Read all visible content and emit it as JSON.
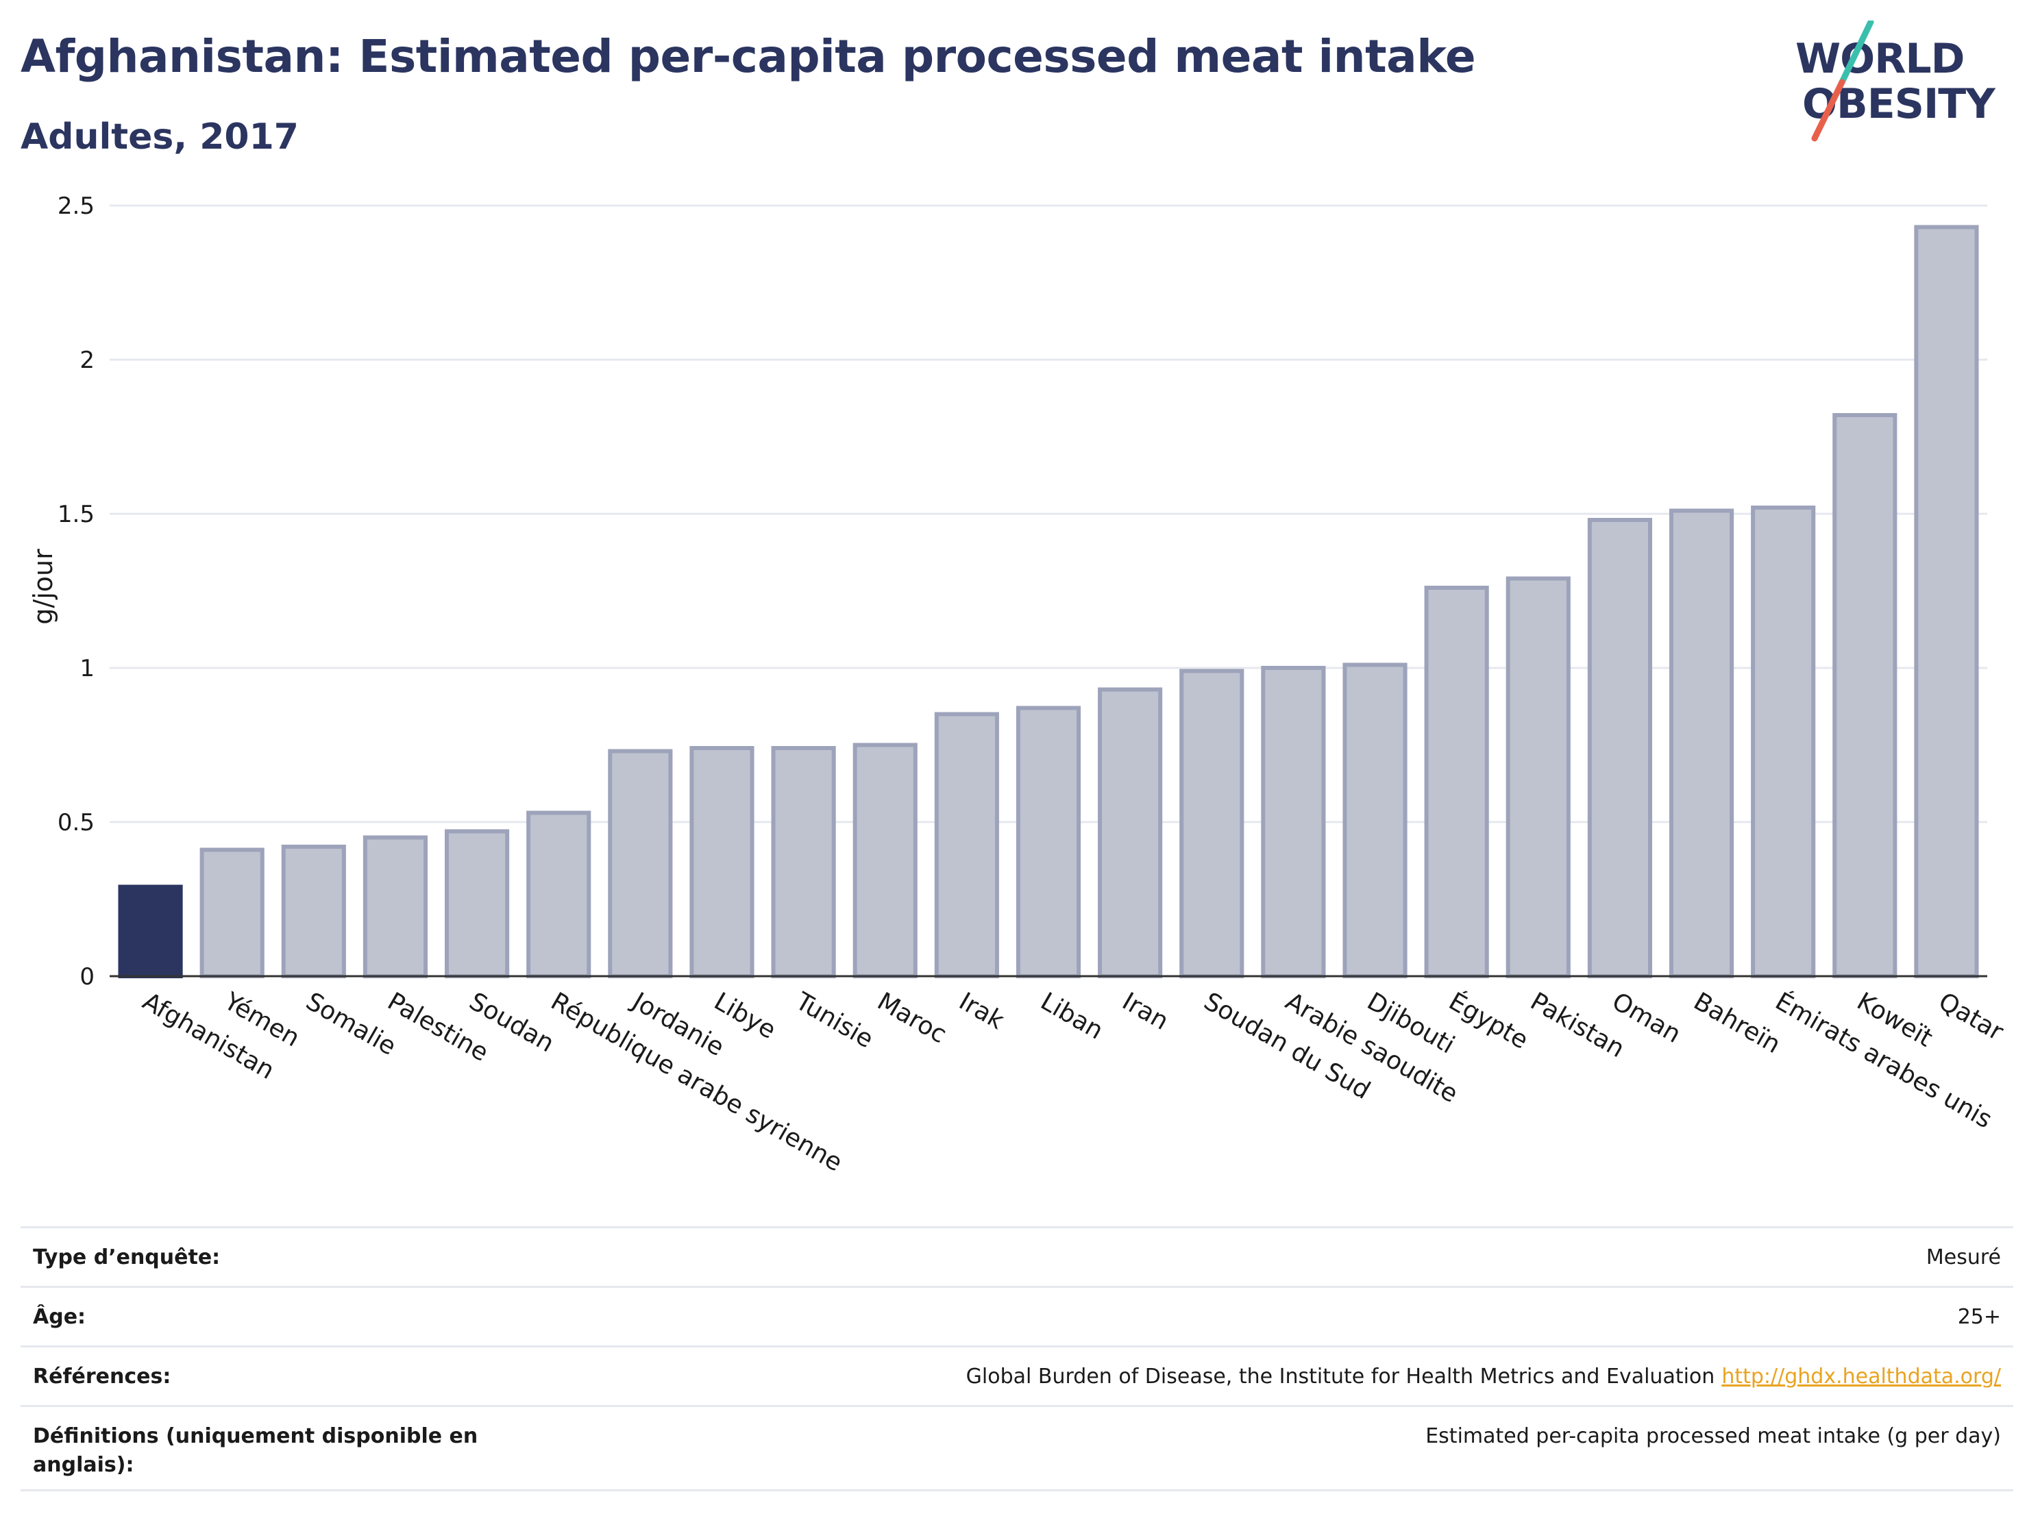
{
  "header": {
    "title": "Afghanistan: Estimated per-capita processed meat intake",
    "subtitle": "Adultes, 2017"
  },
  "logo": {
    "line1": "WORLD",
    "line2": "OBESITY",
    "colors": {
      "text": "#2b3560",
      "slash_top": "#3bbfad",
      "slash_bottom": "#e8604c"
    }
  },
  "chart_data": {
    "type": "bar",
    "ylabel": "g/jour",
    "xlabel": "",
    "ylim": [
      0,
      2.5
    ],
    "yticks": [
      0,
      0.5,
      1,
      1.5,
      2,
      2.5
    ],
    "ytick_labels": [
      "0",
      "0.5",
      "1",
      "1.5",
      "2",
      "2.5"
    ],
    "grid": true,
    "categories": [
      "Afghanistan",
      "Yémen",
      "Somalie",
      "Palestine",
      "Soudan",
      "République arabe syrienne",
      "Jordanie",
      "Libye",
      "Tunisie",
      "Maroc",
      "Irak",
      "Liban",
      "Iran",
      "Soudan du Sud",
      "Arabie saoudite",
      "Djibouti",
      "Égypte",
      "Pakistan",
      "Oman",
      "Bahreïn",
      "Émirats arabes unis",
      "Koweït",
      "Qatar"
    ],
    "values": [
      0.29,
      0.41,
      0.42,
      0.45,
      0.47,
      0.53,
      0.73,
      0.74,
      0.74,
      0.75,
      0.85,
      0.87,
      0.93,
      0.99,
      1.0,
      1.01,
      1.26,
      1.29,
      1.48,
      1.51,
      1.52,
      1.82,
      2.43
    ],
    "highlight_index": 0,
    "colors": {
      "highlight": "#2b3560",
      "bar_fill": "#bfc3d0",
      "bar_stroke": "#9da3ba",
      "grid": "#e6e8ef",
      "axis": "#333333"
    }
  },
  "info_table": {
    "rows": [
      {
        "label": "Type d’enquête:",
        "value": "Mesuré"
      },
      {
        "label": "Âge:",
        "value": "25+"
      },
      {
        "label": "Références:",
        "value": "Global Burden of Disease, the Institute for Health Metrics and Evaluation",
        "link": "http://ghdx.healthdata.org/"
      },
      {
        "label": "Définitions (uniquement disponible en anglais):",
        "value": "Estimated per-capita processed meat intake (g per day)"
      }
    ],
    "link_color": "#e9a320"
  }
}
